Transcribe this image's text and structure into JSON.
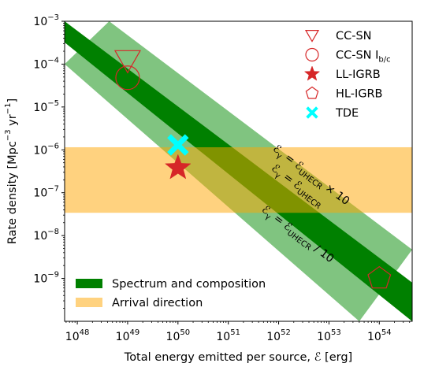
{
  "chart_data": {
    "type": "scatter",
    "xscale": "log",
    "yscale": "log",
    "xlim": [
      5.6e+47,
      4.5e+54
    ],
    "ylim": [
      1e-10,
      0.001
    ],
    "xlabel": {
      "text": "Total energy emitted per source, ",
      "symbol": "ℰ",
      "unit": " [erg]"
    },
    "ylabel": {
      "pre": "Rate density [Mpc",
      "sup1": "−3",
      "mid": " yr",
      "sup2": "−1",
      "post": "]"
    },
    "x_ticks": [
      {
        "value": 1e+48,
        "mant": "10",
        "exp": "48"
      },
      {
        "value": 1e+49,
        "mant": "10",
        "exp": "49"
      },
      {
        "value": 1e+50,
        "mant": "10",
        "exp": "50"
      },
      {
        "value": 1e+51,
        "mant": "10",
        "exp": "51"
      },
      {
        "value": 1e+52,
        "mant": "10",
        "exp": "52"
      },
      {
        "value": 1e+53,
        "mant": "10",
        "exp": "53"
      },
      {
        "value": 1e+54,
        "mant": "10",
        "exp": "54"
      }
    ],
    "y_ticks": [
      {
        "value": 1e-09,
        "mant": "10",
        "exp": "−9"
      },
      {
        "value": 1e-08,
        "mant": "10",
        "exp": "−8"
      },
      {
        "value": 1e-07,
        "mant": "10",
        "exp": "−7"
      },
      {
        "value": 1e-06,
        "mant": "10",
        "exp": "−6"
      },
      {
        "value": 1e-05,
        "mant": "10",
        "exp": "−5"
      },
      {
        "value": 0.0001,
        "mant": "10",
        "exp": "−4"
      },
      {
        "value": 0.001,
        "mant": "10",
        "exp": "−3"
      }
    ],
    "bands": {
      "spectrum_outer": {
        "color": "#80c480",
        "upper_line": [
          [
            4.3e+48,
            0.001
          ],
          [
            4.5e+54,
            4.7e-09
          ]
        ],
        "lower_line": [
          [
            5.6e+47,
            0.0001
          ],
          [
            4e+53,
            1e-10
          ]
        ]
      },
      "spectrum_core": {
        "color": "#008000",
        "upper_line": [
          [
            5.6e+47,
            0.001
          ],
          [
            4.5e+54,
            8e-10
          ]
        ],
        "lower_line": [
          [
            5.6e+47,
            0.00032
          ],
          [
            4.5e+54,
            1e-10
          ]
        ]
      },
      "arrival": {
        "color": "#ffa500",
        "opacity": 0.5,
        "y_range": [
          3.4e-08,
          1.15e-06
        ]
      }
    },
    "band_labels": [
      {
        "base": "ℰ",
        "sub1": "γ",
        "eq": " = ℰ",
        "sub2": "UHECR",
        "post": " × 10",
        "x": 7.5e+51,
        "y": 1e-06,
        "angle": 37
      },
      {
        "base": "ℰ",
        "sub1": "γ",
        "eq": " = ℰ",
        "sub2": "UHECR",
        "post": "",
        "x": 7e+51,
        "y": 3.5e-07,
        "angle": 37
      },
      {
        "base": "ℰ",
        "sub1": "γ",
        "eq": " = ℰ",
        "sub2": "UHECR",
        "post": " / 10",
        "x": 4.5e+51,
        "y": 3.8e-08,
        "angle": 37
      }
    ],
    "points": [
      {
        "name": "CC-SN",
        "marker": "triangle-down-open",
        "color": "#d62728",
        "x": 1e+49,
        "y": 0.00012
      },
      {
        "name": "CC-SN I_b/c",
        "marker": "circle-open",
        "color": "#d62728",
        "x": 1e+49,
        "y": 4.8e-05
      },
      {
        "name": "LL-IGRB",
        "marker": "star",
        "color": "#d62728",
        "x": 1e+50,
        "y": 3.8e-07
      },
      {
        "name": "HL-IGRB",
        "marker": "pentagon-open",
        "color": "#d62728",
        "x": 1e+54,
        "y": 1e-09
      },
      {
        "name": "TDE",
        "marker": "x-filled",
        "color": "#00ffff",
        "x": 1e+50,
        "y": 1.3e-06
      }
    ],
    "legend_markers": [
      {
        "label": "CC-SN",
        "marker": "triangle-down-open",
        "color": "#d62728"
      },
      {
        "label": "CC-SN I",
        "label_sub": "b/c",
        "marker": "circle-open",
        "color": "#d62728"
      },
      {
        "label": "LL-IGRB",
        "marker": "star",
        "color": "#d62728"
      },
      {
        "label": "HL-IGRB",
        "marker": "pentagon-open",
        "color": "#d62728"
      },
      {
        "label": "TDE",
        "marker": "x-filled",
        "color": "#00ffff"
      }
    ],
    "legend_bands": [
      {
        "label": "Spectrum and composition",
        "color": "#008000",
        "opacity": 1
      },
      {
        "label": "Arrival direction",
        "color": "#ffa500",
        "opacity": 0.5
      }
    ],
    "legend_placement": [
      "upper right",
      "lower left"
    ],
    "grid": false
  }
}
